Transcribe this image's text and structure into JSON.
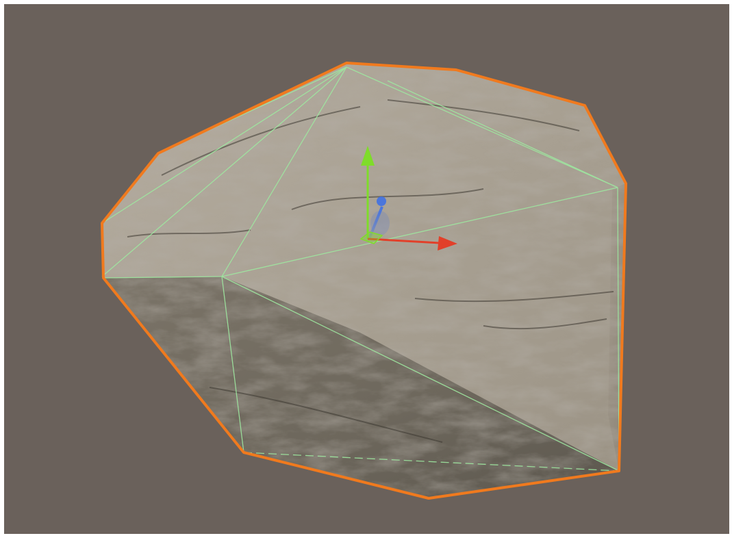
{
  "scene": {
    "object": "rock",
    "selection_outline_color": "#f07a1e",
    "wireframe_color": "#9ee8a0",
    "background_color": "#6a615b"
  },
  "gizmo": {
    "type": "move-tool",
    "axes": [
      {
        "axis": "y",
        "color": "#7fdc2a",
        "icon": "arrow-up-icon"
      },
      {
        "axis": "x",
        "color": "#e2402a",
        "icon": "arrow-right-icon"
      },
      {
        "axis": "z",
        "color": "#3b6fe8",
        "icon": "arrow-forward-icon"
      }
    ],
    "center_handle_color": "#7fdc2a"
  }
}
